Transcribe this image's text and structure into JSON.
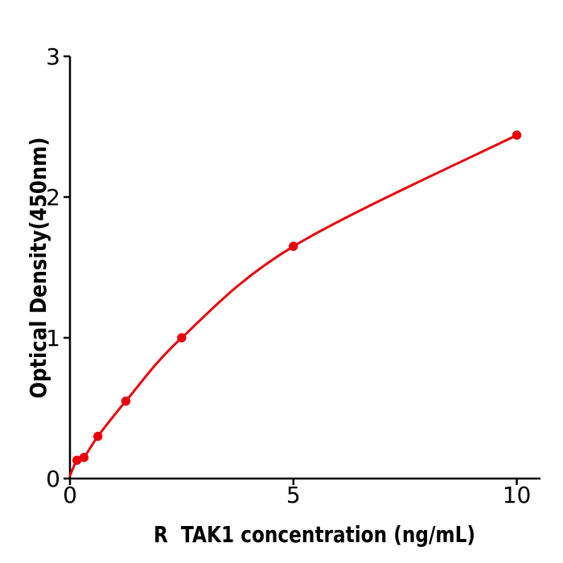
{
  "figure": {
    "background": "#ffffff"
  },
  "chart_data": {
    "type": "line",
    "xlabel": "R  TAK1 concentration (ng/mL)",
    "ylabel": "Optical Density(450nm)",
    "x": [
      0.156,
      0.313,
      0.625,
      1.25,
      2.5,
      5,
      10
    ],
    "y": [
      0.13,
      0.15,
      0.3,
      0.55,
      1.0,
      1.65,
      2.44
    ],
    "curve_start": [
      0,
      0.02
    ],
    "xlim": [
      0,
      10.53
    ],
    "ylim": [
      0,
      3
    ],
    "xticks": [
      0,
      5,
      10
    ],
    "xtick_labels": [
      "0",
      "5",
      "10"
    ],
    "yticks": [
      0,
      1,
      2,
      3
    ],
    "ytick_labels": [
      "0",
      "1",
      "2",
      "3"
    ],
    "grid": false,
    "legend": false,
    "marker": "circle",
    "line_color": "#e8000b",
    "marker_color": "#e8000b",
    "axis_color": "#000000"
  }
}
